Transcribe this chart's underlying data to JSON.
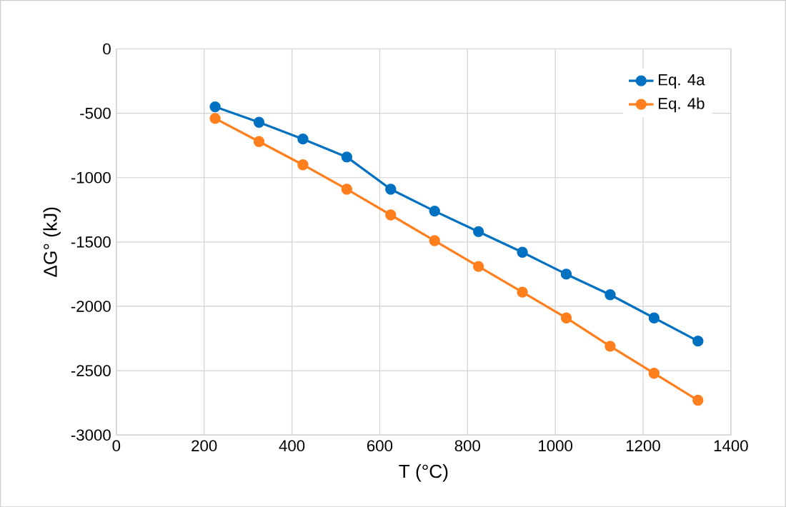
{
  "chart_data": {
    "type": "line",
    "xlabel": "T (°C)",
    "ylabel": "ΔG° (kJ)",
    "x": [
      225,
      325,
      425,
      525,
      625,
      725,
      825,
      925,
      1025,
      1125,
      1225,
      1325
    ],
    "series": [
      {
        "name": "Eq. 4a",
        "color": "#0070c0",
        "values": [
          -450,
          -570,
          -700,
          -840,
          -1090,
          -1260,
          -1420,
          -1580,
          -1750,
          -1910,
          -2090,
          -2270
        ]
      },
      {
        "name": "Eq. 4b",
        "color": "#ff7f1e",
        "values": [
          -540,
          -720,
          -900,
          -1090,
          -1290,
          -1490,
          -1690,
          -1890,
          -2090,
          -2310,
          -2520,
          -2730
        ]
      }
    ],
    "xlim": [
      0,
      1400
    ],
    "ylim": [
      -3000,
      0
    ],
    "xticks": [
      0,
      200,
      400,
      600,
      800,
      1000,
      1200,
      1400
    ],
    "yticks": [
      0,
      -500,
      -1000,
      -1500,
      -2000,
      -2500,
      -3000
    ],
    "grid": true,
    "legend": "top right",
    "marker": "circle",
    "line_style": "solid"
  }
}
